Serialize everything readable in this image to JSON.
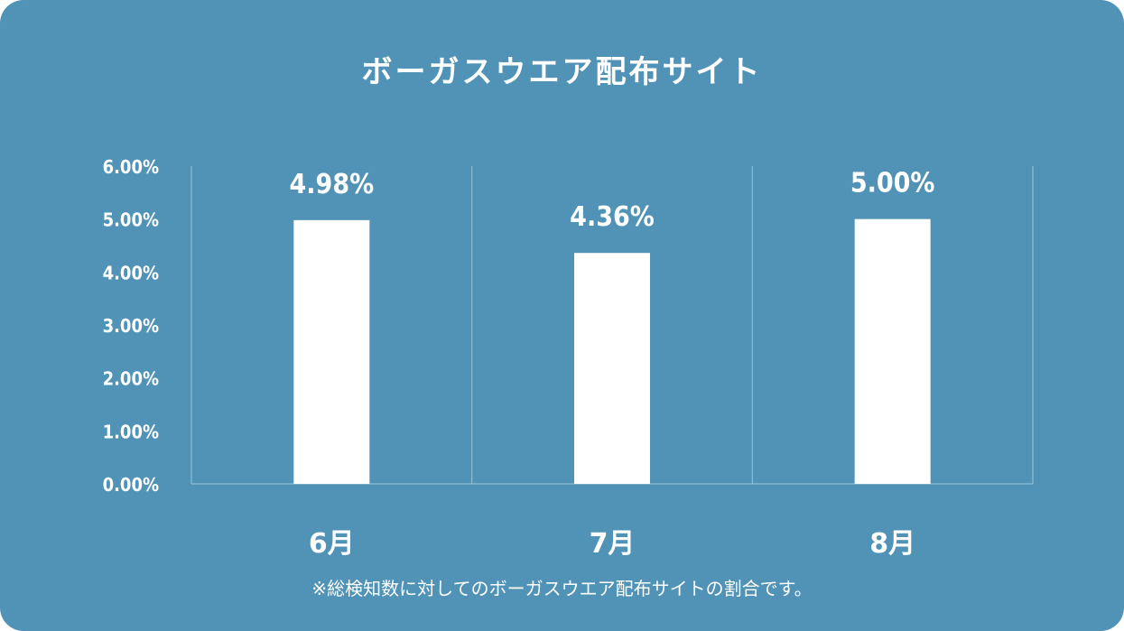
{
  "chart_data": {
    "type": "bar",
    "title": "ボーガスウエア配布サイト",
    "categories": [
      "6月",
      "7月",
      "8月"
    ],
    "values": [
      4.98,
      4.36,
      5.0
    ],
    "value_labels": [
      "4.98%",
      "4.36%",
      "5.00%"
    ],
    "y_ticks": [
      "0.00%",
      "1.00%",
      "2.00%",
      "3.00%",
      "4.00%",
      "5.00%",
      "6.00%"
    ],
    "ylim": [
      0,
      6
    ],
    "xlabel": "",
    "ylabel": "",
    "grid": false,
    "footnote": "※総検知数に対してのボーガスウエア配布サイトの割合です。",
    "colors": {
      "background": "#5093b6",
      "bar": "#ffffff",
      "text": "#ffffff",
      "separator": "#9cc4d9"
    }
  }
}
